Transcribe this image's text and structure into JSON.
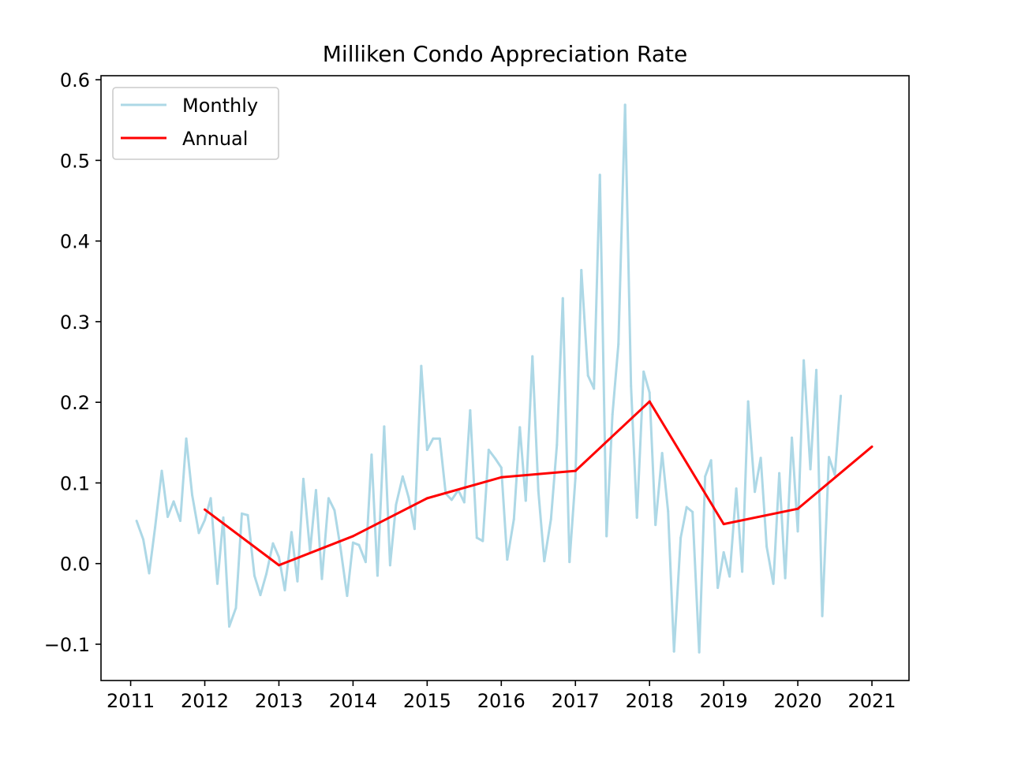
{
  "chart_data": {
    "type": "line",
    "title": "Milliken Condo Appreciation Rate",
    "xlabel": "",
    "ylabel": "",
    "xlim": [
      2010.6,
      2021.5
    ],
    "ylim": [
      -0.145,
      0.605
    ],
    "x_ticks": [
      2011,
      2012,
      2013,
      2014,
      2015,
      2016,
      2017,
      2018,
      2019,
      2020,
      2021
    ],
    "x_tick_labels": [
      "2011",
      "2012",
      "2013",
      "2014",
      "2015",
      "2016",
      "2017",
      "2018",
      "2019",
      "2020",
      "2021"
    ],
    "y_ticks": [
      -0.1,
      0.0,
      0.1,
      0.2,
      0.3,
      0.4,
      0.5,
      0.6
    ],
    "y_tick_labels": [
      "−0.1",
      "0.0",
      "0.1",
      "0.2",
      "0.3",
      "0.4",
      "0.5",
      "0.6"
    ],
    "grid": false,
    "legend_position": "upper-left",
    "series": [
      {
        "name": "Monthly",
        "color": "#add8e6",
        "x": [
          2011.08,
          2011.17,
          2011.25,
          2011.33,
          2011.42,
          2011.5,
          2011.58,
          2011.67,
          2011.75,
          2011.83,
          2011.92,
          2012.0,
          2012.08,
          2012.17,
          2012.25,
          2012.33,
          2012.42,
          2012.5,
          2012.58,
          2012.67,
          2012.75,
          2012.83,
          2012.92,
          2013.0,
          2013.08,
          2013.17,
          2013.25,
          2013.33,
          2013.42,
          2013.5,
          2013.58,
          2013.67,
          2013.75,
          2013.83,
          2013.92,
          2014.0,
          2014.08,
          2014.17,
          2014.25,
          2014.33,
          2014.42,
          2014.5,
          2014.58,
          2014.67,
          2014.75,
          2014.83,
          2014.92,
          2015.0,
          2015.08,
          2015.17,
          2015.25,
          2015.33,
          2015.42,
          2015.5,
          2015.58,
          2015.67,
          2015.75,
          2015.83,
          2015.92,
          2016.0,
          2016.08,
          2016.17,
          2016.25,
          2016.33,
          2016.42,
          2016.5,
          2016.58,
          2016.67,
          2016.75,
          2016.83,
          2016.92,
          2017.0,
          2017.08,
          2017.17,
          2017.25,
          2017.33,
          2017.42,
          2017.5,
          2017.58,
          2017.67,
          2017.75,
          2017.83,
          2017.92,
          2018.0,
          2018.08,
          2018.17,
          2018.25,
          2018.33,
          2018.42,
          2018.5,
          2018.58,
          2018.67,
          2018.75,
          2018.83,
          2018.92,
          2019.0,
          2019.08,
          2019.17,
          2019.25,
          2019.33,
          2019.42,
          2019.5,
          2019.58,
          2019.67,
          2019.75,
          2019.83,
          2019.92,
          2020.0,
          2020.08,
          2020.17,
          2020.25,
          2020.33,
          2020.42,
          2020.5,
          2020.58
        ],
        "y": [
          0.053,
          0.03,
          -0.012,
          0.045,
          0.115,
          0.058,
          0.077,
          0.053,
          0.155,
          0.085,
          0.038,
          0.054,
          0.081,
          -0.025,
          0.057,
          -0.078,
          -0.055,
          0.062,
          0.06,
          -0.015,
          -0.039,
          -0.013,
          0.025,
          0.008,
          -0.033,
          0.039,
          -0.022,
          0.105,
          0.015,
          0.091,
          -0.019,
          0.081,
          0.066,
          0.02,
          -0.04,
          0.026,
          0.023,
          0.002,
          0.135,
          -0.015,
          0.17,
          -0.002,
          0.073,
          0.108,
          0.082,
          0.043,
          0.245,
          0.141,
          0.155,
          0.155,
          0.087,
          0.079,
          0.091,
          0.076,
          0.19,
          0.032,
          0.028,
          0.141,
          0.13,
          0.119,
          0.005,
          0.055,
          0.169,
          0.078,
          0.257,
          0.09,
          0.003,
          0.055,
          0.147,
          0.329,
          0.002,
          0.106,
          0.364,
          0.233,
          0.217,
          0.482,
          0.034,
          0.185,
          0.272,
          0.569,
          0.22,
          0.057,
          0.238,
          0.212,
          0.048,
          0.137,
          0.065,
          -0.109,
          0.032,
          0.07,
          0.064,
          -0.11,
          0.108,
          0.128,
          -0.03,
          0.014,
          -0.016,
          0.093,
          -0.01,
          0.201,
          0.089,
          0.131,
          0.021,
          -0.025,
          0.112,
          -0.018,
          0.156,
          0.04,
          0.252,
          0.117,
          0.24,
          -0.065,
          0.132,
          0.11,
          0.208
        ]
      },
      {
        "name": "Annual",
        "color": "#ff0000",
        "x": [
          2012,
          2013,
          2014,
          2015,
          2016,
          2017,
          2018,
          2019,
          2020,
          2021
        ],
        "y": [
          0.067,
          -0.002,
          0.034,
          0.081,
          0.107,
          0.115,
          0.201,
          0.049,
          0.068,
          0.145
        ]
      }
    ]
  }
}
